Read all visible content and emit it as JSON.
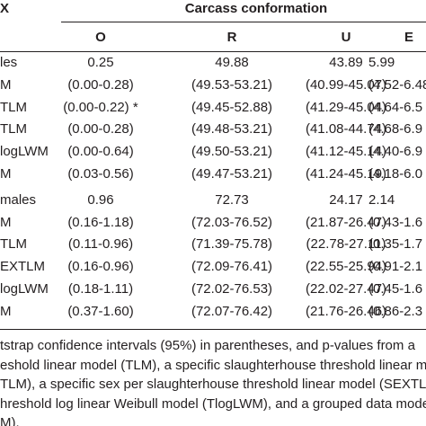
{
  "header": {
    "corner": "X",
    "group": "Carcass conformation",
    "columns": [
      "O",
      "R",
      "U",
      "E"
    ]
  },
  "table": {
    "rows": [
      [
        "les",
        "0.25",
        "49.88",
        "43.89",
        "5.99"
      ],
      [
        "M",
        "(0.00-0.28)",
        "(49.53-53.21)",
        "(40.99-45.07)",
        "(4.52-6.48"
      ],
      [
        "TLM",
        "(0.00-0.22) *",
        "(49.45-52.88)",
        "(41.29-45.04)",
        "(4.64-6.5"
      ],
      [
        "TLM",
        "(0.00-0.28)",
        "(49.48-53.21)",
        "(41.08-44.74)",
        "(4.68-6.9"
      ],
      [
        "logLWM",
        "(0.00-0.64)",
        "(49.50-53.21)",
        "(41.12-45.14)",
        "(4.40-6.9"
      ],
      [
        "M",
        "(0.03-0.56)",
        "(49.47-53.21)",
        "(41.24-45.19)",
        "(4.18-6.0"
      ],
      [
        "males",
        "0.96",
        "72.73",
        "24.17",
        "2.14"
      ],
      [
        "M",
        "(0.16-1.18)",
        "(72.03-76.52)",
        "(21.87-26.47)",
        "(0.43-1.6"
      ],
      [
        "TLM",
        "(0.11-0.96)",
        "(71.39-75.78)",
        "(22.78-27.11)",
        "(0.35-1.7"
      ],
      [
        "EXTLM",
        "(0.16-0.96)",
        "(72.09-76.41)",
        "(22.55-25.94)",
        "(0.91-2.1"
      ],
      [
        "logLWM",
        "(0.18-1.11)",
        "(72.02-76.53)",
        "(22.02-27.47)",
        "(0.45-1.6"
      ],
      [
        "M",
        "(0.37-1.60)",
        "(72.07-76.42)",
        "(21.76-26.46)",
        "(0.86-2.3"
      ]
    ]
  },
  "footnote": [
    "tstrap confidence intervals (95%) in parentheses, and p-values from a",
    "eshold linear model (TLM), a specific slaughterhouse threshold linear mod",
    "TLM), a specific sex per slaughterhouse threshold linear model (SEXTLM",
    "hreshold log linear Weibull model (TlogLWM), and a grouped data mode",
    "M)."
  ]
}
